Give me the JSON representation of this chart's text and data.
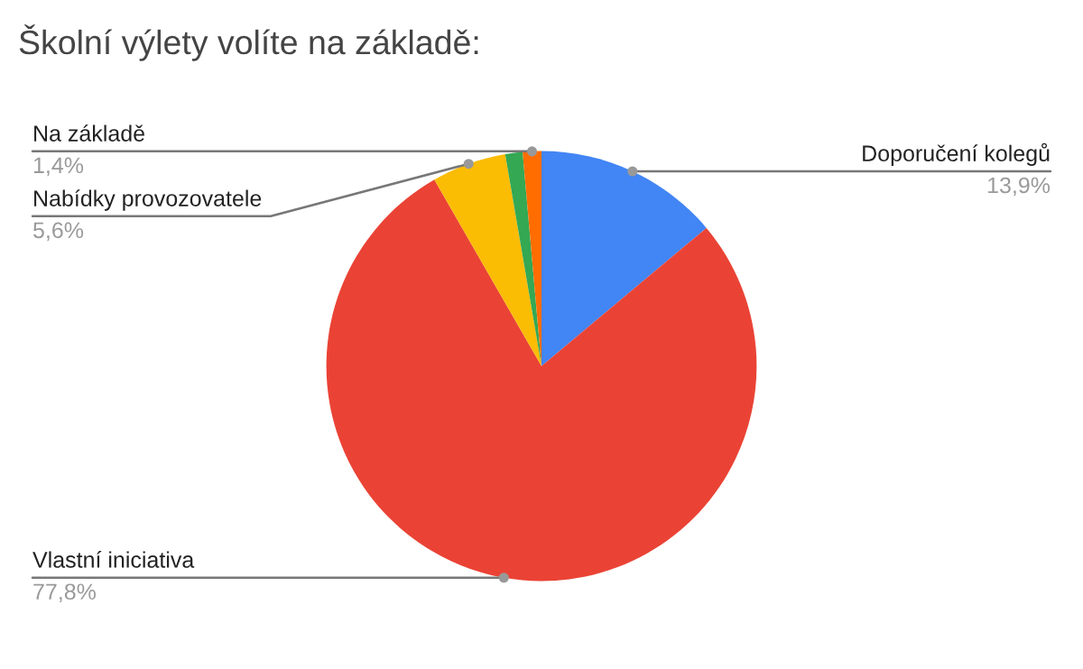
{
  "chart_data": {
    "type": "pie",
    "title": "Školní výlety volíte na základě:",
    "categories": [
      "Doporučení kolegů",
      "Vlastní iniciativa",
      "Nabídky provozovatele",
      null,
      "Na základě"
    ],
    "values": [
      13.9,
      77.8,
      5.6,
      1.3,
      1.4
    ],
    "value_labels": [
      "13,9%",
      "77,8%",
      "5,6%",
      null,
      "1,4%"
    ],
    "colors": [
      "#4285f4",
      "#ea4335",
      "#fbbc04",
      "#34a853",
      "#ff6d01"
    ],
    "legend": false
  }
}
